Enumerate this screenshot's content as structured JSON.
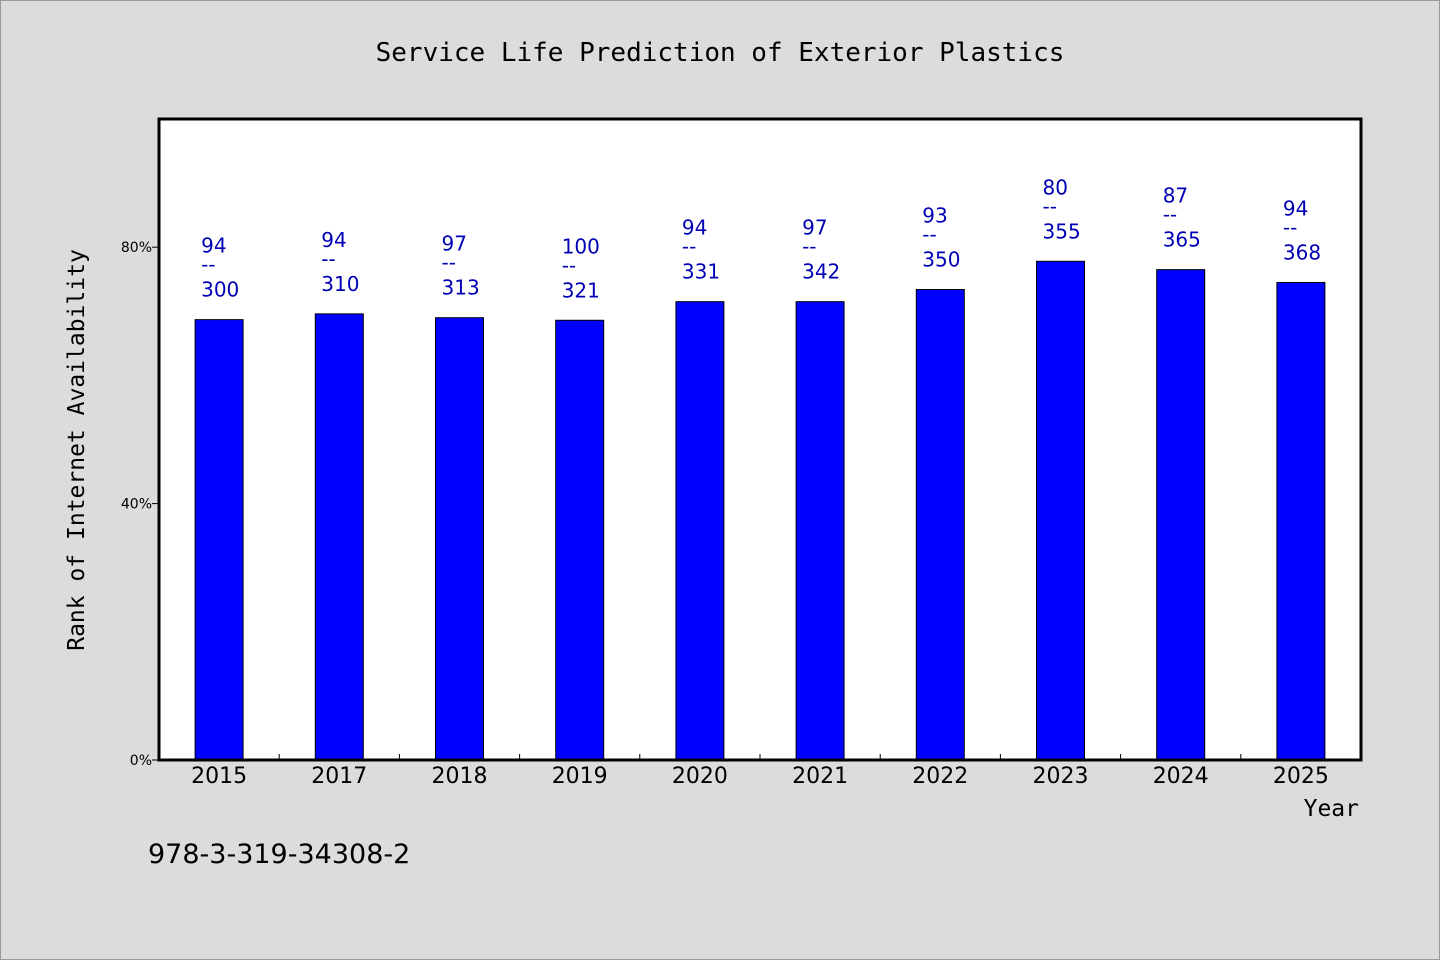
{
  "chart_data": {
    "type": "bar",
    "title": "Service Life Prediction of Exterior Plastics",
    "xlabel": "Year",
    "ylabel": "Rank of Internet Availability",
    "categories": [
      "2015",
      "2017",
      "2018",
      "2019",
      "2020",
      "2021",
      "2022",
      "2023",
      "2024",
      "2025"
    ],
    "series": [
      {
        "values": [
          0.687,
          0.696,
          0.69,
          0.686,
          0.715,
          0.715,
          0.734,
          0.778,
          0.765,
          0.745
        ],
        "labels_top": [
          "94",
          "94",
          "97",
          "100",
          "94",
          "97",
          "93",
          "80",
          "87",
          "94"
        ],
        "labels_mid": [
          "--",
          "--",
          "--",
          "--",
          "--",
          "--",
          "--",
          "--",
          "--",
          "--"
        ],
        "labels_bottom": [
          "300",
          "310",
          "313",
          "321",
          "331",
          "342",
          "350",
          "355",
          "365",
          "368"
        ]
      }
    ],
    "y_ticks": [
      {
        "value": 0.0,
        "label": "0%"
      },
      {
        "value": 0.4,
        "label": "40%"
      },
      {
        "value": 0.8,
        "label": "80%"
      }
    ],
    "ylim": [
      0,
      1
    ],
    "grid": false,
    "colors": {
      "bar": "#0000ff",
      "data_label": "#0000b4",
      "background": "#dcdcdc",
      "plot_background": "#ffffff"
    }
  },
  "footnote": "978-3-319-34308-2"
}
